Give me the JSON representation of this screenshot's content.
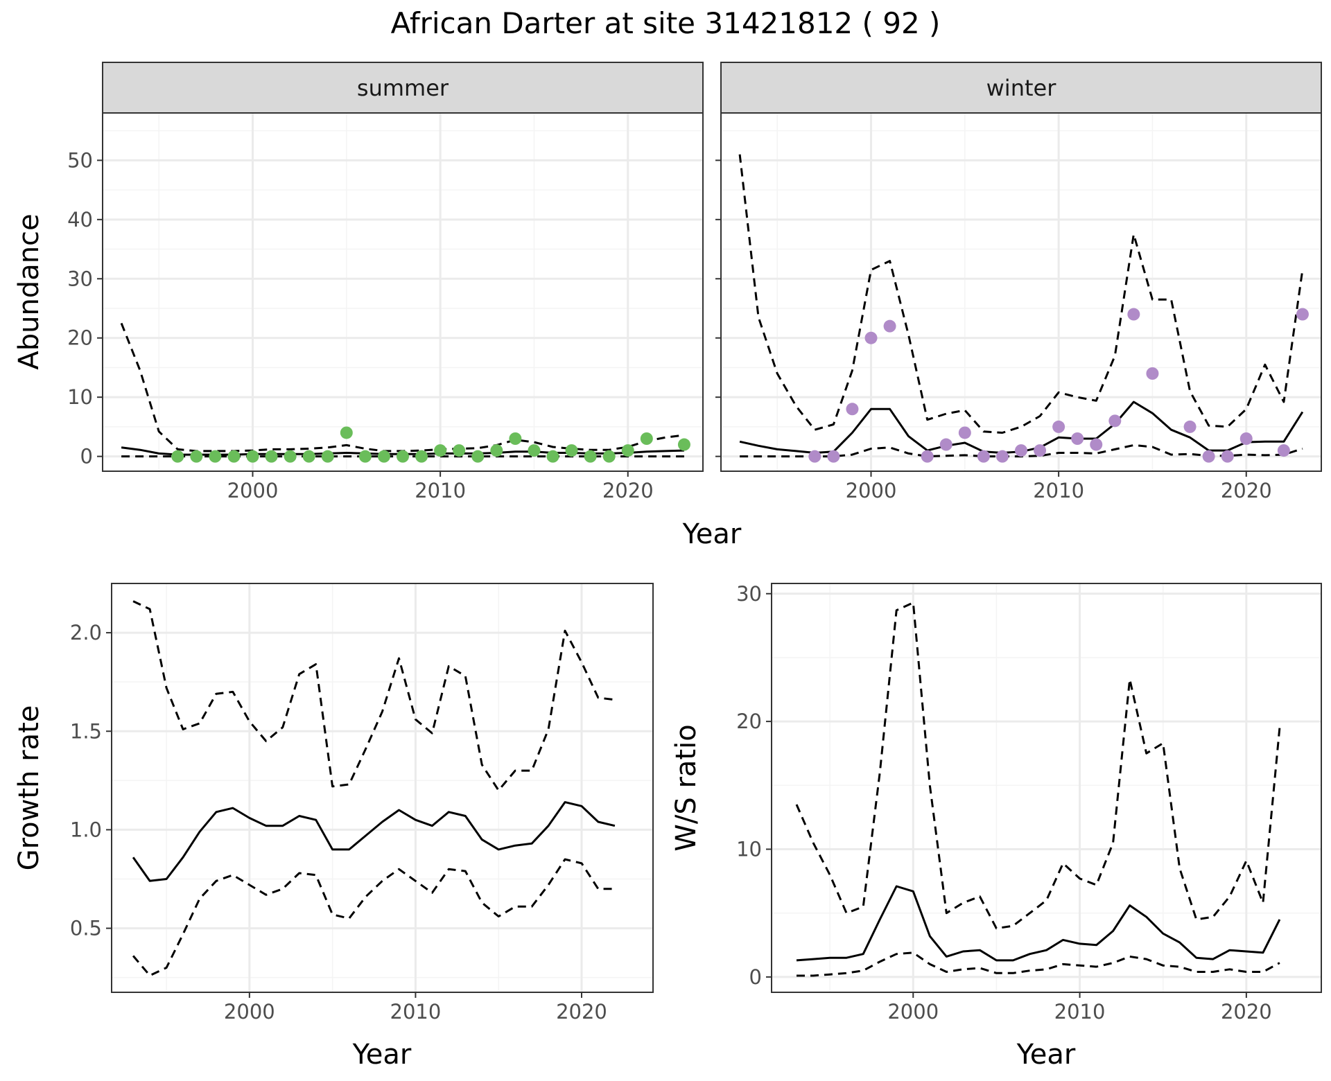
{
  "title": "African Darter at site 31421812 ( 92 )",
  "colors": {
    "summer_points": "#6ABD5A",
    "winter_points": "#B08BC8",
    "lines": "#000000",
    "grid_major": "#EBEBEB",
    "grid_minor": "#F4F4F4",
    "strip_fill": "#D9D9D9",
    "panel_border": "#333333"
  },
  "chart_data": [
    {
      "type": "line",
      "id": "abundance",
      "facets": [
        "summer",
        "winter"
      ],
      "xlabel": "Year",
      "ylabel": "Abundance",
      "xlim": [
        1992,
        2024
      ],
      "ylim": [
        -2.5,
        58
      ],
      "xticks": [
        2000,
        2010,
        2020
      ],
      "yticks": [
        0,
        10,
        20,
        30,
        40,
        50
      ],
      "x": [
        1993,
        1994,
        1995,
        1996,
        1997,
        1998,
        1999,
        2000,
        2001,
        2002,
        2003,
        2004,
        2005,
        2006,
        2007,
        2008,
        2009,
        2010,
        2011,
        2012,
        2013,
        2014,
        2015,
        2016,
        2017,
        2018,
        2019,
        2020,
        2021,
        2022,
        2023
      ],
      "panels": [
        {
          "facet": "summer",
          "series": [
            {
              "role": "estimate",
              "style": "solid",
              "values": [
                1.5,
                1.1,
                0.5,
                0.3,
                0.3,
                0.3,
                0.3,
                0.4,
                0.4,
                0.4,
                0.4,
                0.5,
                0.6,
                0.5,
                0.4,
                0.4,
                0.4,
                0.5,
                0.5,
                0.5,
                0.6,
                0.8,
                0.8,
                0.6,
                0.6,
                0.5,
                0.5,
                0.6,
                0.8,
                0.9,
                1.0
              ]
            },
            {
              "role": "upper",
              "style": "dashed",
              "values": [
                22.5,
                14.5,
                4.2,
                1.2,
                0.9,
                0.9,
                0.9,
                1.0,
                1.2,
                1.2,
                1.3,
                1.5,
                1.9,
                1.3,
                0.9,
                0.9,
                1.0,
                1.2,
                1.3,
                1.4,
                1.9,
                2.8,
                2.4,
                1.6,
                1.3,
                1.1,
                1.1,
                1.6,
                2.6,
                3.2,
                3.6
              ]
            },
            {
              "role": "lower",
              "style": "dashed",
              "values": [
                0,
                0,
                0,
                0,
                0,
                0,
                0,
                0,
                0,
                0,
                0,
                0,
                0,
                0,
                0,
                0,
                0,
                0,
                0,
                0,
                0,
                0,
                0,
                0,
                0,
                0,
                0,
                0,
                0,
                0,
                0
              ]
            }
          ],
          "points": {
            "x": [
              1996,
              1997,
              1998,
              1999,
              2000,
              2001,
              2002,
              2003,
              2004,
              2005,
              2006,
              2007,
              2008,
              2009,
              2010,
              2011,
              2012,
              2013,
              2014,
              2015,
              2016,
              2017,
              2018,
              2019,
              2020,
              2021,
              2023
            ],
            "y": [
              0,
              0,
              0,
              0,
              0,
              0,
              0,
              0,
              0,
              4,
              0,
              0,
              0,
              0,
              1,
              1,
              0,
              1,
              3,
              1,
              0,
              1,
              0,
              0,
              1,
              3,
              2
            ]
          }
        },
        {
          "facet": "winter",
          "series": [
            {
              "role": "estimate",
              "style": "solid",
              "values": [
                2.5,
                1.8,
                1.2,
                0.9,
                0.6,
                0.8,
                4.0,
                8.0,
                8.0,
                3.4,
                1.0,
                1.8,
                2.3,
                0.8,
                0.6,
                0.8,
                1.5,
                3.2,
                3.0,
                3.0,
                5.5,
                9.2,
                7.3,
                4.5,
                3.2,
                1.0,
                1.0,
                2.4,
                2.5,
                2.5,
                7.5
              ]
            },
            {
              "role": "upper",
              "style": "dashed",
              "values": [
                51,
                23.5,
                14,
                8.5,
                4.5,
                5.4,
                14.5,
                31.5,
                33,
                20.5,
                6.2,
                7.2,
                7.8,
                4.2,
                4.0,
                5.0,
                6.8,
                10.8,
                10.0,
                9.4,
                17,
                37.5,
                26.5,
                26.5,
                11,
                5.2,
                5.0,
                8.0,
                15.5,
                9.2,
                31.5
              ]
            },
            {
              "role": "lower",
              "style": "dashed",
              "values": [
                0,
                0,
                0,
                0,
                0,
                0,
                0.3,
                1.3,
                1.5,
                0.5,
                0,
                0.1,
                0.2,
                0,
                0,
                0,
                0.1,
                0.6,
                0.6,
                0.5,
                1.2,
                1.9,
                1.6,
                0.3,
                0.4,
                0.1,
                0.1,
                0.3,
                0.2,
                0.3,
                1.3
              ]
            }
          ],
          "points": {
            "x": [
              1997,
              1998,
              1999,
              2000,
              2001,
              2003,
              2004,
              2005,
              2006,
              2007,
              2008,
              2009,
              2010,
              2011,
              2012,
              2013,
              2014,
              2015,
              2017,
              2018,
              2019,
              2020,
              2022,
              2023
            ],
            "y": [
              0,
              0,
              8,
              20,
              22,
              0,
              2,
              4,
              0,
              0,
              1,
              1,
              5,
              3,
              2,
              6,
              24,
              14,
              5,
              0,
              0,
              3,
              1,
              24
            ]
          }
        }
      ]
    },
    {
      "type": "line",
      "id": "growth",
      "xlabel": "Year",
      "ylabel": "Growth rate",
      "xlim": [
        1991.7,
        2024.3
      ],
      "ylim": [
        0.175,
        2.25
      ],
      "xticks": [
        2000,
        2010,
        2020
      ],
      "yticks": [
        0.5,
        1.0,
        1.5,
        2.0
      ],
      "ytick_labels": [
        "0.5",
        "1.0",
        "1.5",
        "2.0"
      ],
      "x": [
        1993,
        1994,
        1995,
        1996,
        1997,
        1998,
        1999,
        2000,
        2001,
        2002,
        2003,
        2004,
        2005,
        2006,
        2007,
        2008,
        2009,
        2010,
        2011,
        2012,
        2013,
        2014,
        2015,
        2016,
        2017,
        2018,
        2019,
        2020,
        2021,
        2022
      ],
      "series": [
        {
          "role": "estimate",
          "style": "solid",
          "values": [
            0.86,
            0.74,
            0.75,
            0.86,
            0.99,
            1.09,
            1.11,
            1.06,
            1.02,
            1.02,
            1.07,
            1.05,
            0.9,
            0.9,
            0.97,
            1.04,
            1.1,
            1.05,
            1.02,
            1.09,
            1.07,
            0.95,
            0.9,
            0.92,
            0.93,
            1.02,
            1.14,
            1.12,
            1.04,
            1.02
          ]
        },
        {
          "role": "upper",
          "style": "dashed",
          "values": [
            2.16,
            2.12,
            1.72,
            1.51,
            1.54,
            1.69,
            1.7,
            1.55,
            1.45,
            1.52,
            1.79,
            1.84,
            1.22,
            1.23,
            1.41,
            1.6,
            1.87,
            1.56,
            1.49,
            1.83,
            1.78,
            1.33,
            1.2,
            1.3,
            1.3,
            1.51,
            2.01,
            1.85,
            1.67,
            1.66
          ]
        },
        {
          "role": "lower",
          "style": "dashed",
          "values": [
            0.36,
            0.26,
            0.3,
            0.47,
            0.65,
            0.74,
            0.77,
            0.72,
            0.67,
            0.7,
            0.78,
            0.77,
            0.57,
            0.55,
            0.66,
            0.74,
            0.8,
            0.74,
            0.68,
            0.8,
            0.79,
            0.63,
            0.56,
            0.61,
            0.61,
            0.72,
            0.85,
            0.83,
            0.7,
            0.7
          ]
        }
      ]
    },
    {
      "type": "line",
      "id": "ws_ratio",
      "xlabel": "Year",
      "ylabel": "W/S ratio",
      "xlim": [
        1991.5,
        2024.5
      ],
      "ylim": [
        -1.2,
        30.8
      ],
      "xticks": [
        2000,
        2010,
        2020
      ],
      "yticks": [
        0,
        10,
        20,
        30
      ],
      "x": [
        1993,
        1994,
        1995,
        1996,
        1997,
        1998,
        1999,
        2000,
        2001,
        2002,
        2003,
        2004,
        2005,
        2006,
        2007,
        2008,
        2009,
        2010,
        2011,
        2012,
        2013,
        2014,
        2015,
        2016,
        2017,
        2018,
        2019,
        2020,
        2021,
        2022
      ],
      "series": [
        {
          "role": "estimate",
          "style": "solid",
          "values": [
            1.3,
            1.4,
            1.5,
            1.5,
            1.8,
            4.5,
            7.1,
            6.7,
            3.2,
            1.6,
            2.0,
            2.1,
            1.3,
            1.3,
            1.8,
            2.1,
            2.9,
            2.6,
            2.5,
            3.6,
            5.6,
            4.7,
            3.4,
            2.7,
            1.5,
            1.4,
            2.1,
            2.0,
            1.9,
            4.5
          ]
        },
        {
          "role": "upper",
          "style": "dashed",
          "values": [
            13.5,
            10.5,
            8.0,
            5.0,
            5.5,
            16.0,
            28.7,
            29.3,
            15.0,
            5.0,
            5.8,
            6.3,
            3.8,
            4.0,
            5.0,
            6.0,
            8.9,
            7.7,
            7.2,
            10.5,
            23.3,
            17.5,
            18.3,
            8.5,
            4.5,
            4.7,
            6.3,
            9.1,
            5.8,
            19.5
          ]
        },
        {
          "role": "lower",
          "style": "dashed",
          "values": [
            0.1,
            0.1,
            0.2,
            0.3,
            0.5,
            1.2,
            1.8,
            1.9,
            1.0,
            0.4,
            0.6,
            0.7,
            0.3,
            0.3,
            0.5,
            0.6,
            1.0,
            0.9,
            0.8,
            1.1,
            1.6,
            1.4,
            0.9,
            0.8,
            0.4,
            0.4,
            0.6,
            0.4,
            0.4,
            1.1
          ]
        }
      ]
    }
  ]
}
